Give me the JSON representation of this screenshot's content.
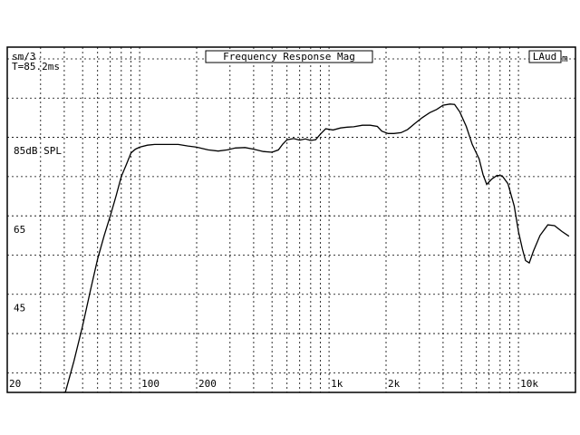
{
  "header": {
    "smoothing": "sm/3",
    "gate": "T=85.2ms",
    "title": "Frequency Response Mag",
    "badge": "LAud",
    "badge_suffix": "m"
  },
  "chart_data": {
    "type": "line",
    "title": "Frequency Response Mag",
    "xscale": "log",
    "xlim": [
      20,
      20000
    ],
    "ylim": [
      25,
      113
    ],
    "x_tick_labels": [
      "20",
      "100",
      "200",
      "1k",
      "2k",
      "10k"
    ],
    "x_tick_values": [
      20,
      100,
      200,
      1000,
      2000,
      10000
    ],
    "y_tick_labels": [
      "85dB SPL",
      "65",
      "45"
    ],
    "y_tick_values": [
      85,
      65,
      45
    ],
    "grid": true,
    "grid_style": "dotted",
    "series": [
      {
        "points": [
          [
            40,
            24
          ],
          [
            45,
            33
          ],
          [
            50,
            42
          ],
          [
            55,
            51
          ],
          [
            60,
            59
          ],
          [
            65,
            65
          ],
          [
            70,
            70
          ],
          [
            75,
            75
          ],
          [
            80,
            80
          ],
          [
            85,
            83
          ],
          [
            90,
            86
          ],
          [
            95,
            87
          ],
          [
            100,
            87.5
          ],
          [
            110,
            88
          ],
          [
            120,
            88.2
          ],
          [
            140,
            88.2
          ],
          [
            160,
            88.2
          ],
          [
            180,
            87.8
          ],
          [
            200,
            87.5
          ],
          [
            230,
            86.8
          ],
          [
            260,
            86.5
          ],
          [
            290,
            86.8
          ],
          [
            320,
            87.3
          ],
          [
            360,
            87.4
          ],
          [
            400,
            87.0
          ],
          [
            450,
            86.4
          ],
          [
            500,
            86.2
          ],
          [
            540,
            86.8
          ],
          [
            570,
            88.3
          ],
          [
            600,
            89.4
          ],
          [
            650,
            89.7
          ],
          [
            700,
            89.3
          ],
          [
            750,
            89.6
          ],
          [
            800,
            89.2
          ],
          [
            850,
            89.4
          ],
          [
            900,
            90.8
          ],
          [
            960,
            92.2
          ],
          [
            1050,
            91.9
          ],
          [
            1150,
            92.4
          ],
          [
            1250,
            92.6
          ],
          [
            1350,
            92.7
          ],
          [
            1500,
            93.1
          ],
          [
            1650,
            93.1
          ],
          [
            1800,
            92.8
          ],
          [
            1900,
            91.6
          ],
          [
            2050,
            91.0
          ],
          [
            2200,
            91.0
          ],
          [
            2400,
            91.2
          ],
          [
            2600,
            92.0
          ],
          [
            2850,
            93.6
          ],
          [
            3100,
            95.0
          ],
          [
            3400,
            96.3
          ],
          [
            3700,
            97.1
          ],
          [
            4000,
            98.2
          ],
          [
            4350,
            98.5
          ],
          [
            4600,
            98.4
          ],
          [
            4900,
            96.5
          ],
          [
            5300,
            92.8
          ],
          [
            5700,
            88.2
          ],
          [
            6200,
            84.5
          ],
          [
            6500,
            80.5
          ],
          [
            6800,
            78.0
          ],
          [
            7200,
            79.3
          ],
          [
            7700,
            80.3
          ],
          [
            8200,
            80.2
          ],
          [
            8800,
            78.2
          ],
          [
            9500,
            72.5
          ],
          [
            10000,
            66.0
          ],
          [
            10500,
            61.5
          ],
          [
            10900,
            58.6
          ],
          [
            11400,
            58.0
          ],
          [
            12000,
            61.0
          ],
          [
            13000,
            65.0
          ],
          [
            14300,
            67.7
          ],
          [
            15500,
            67.5
          ],
          [
            17000,
            66.0
          ],
          [
            18500,
            64.8
          ]
        ]
      }
    ]
  }
}
